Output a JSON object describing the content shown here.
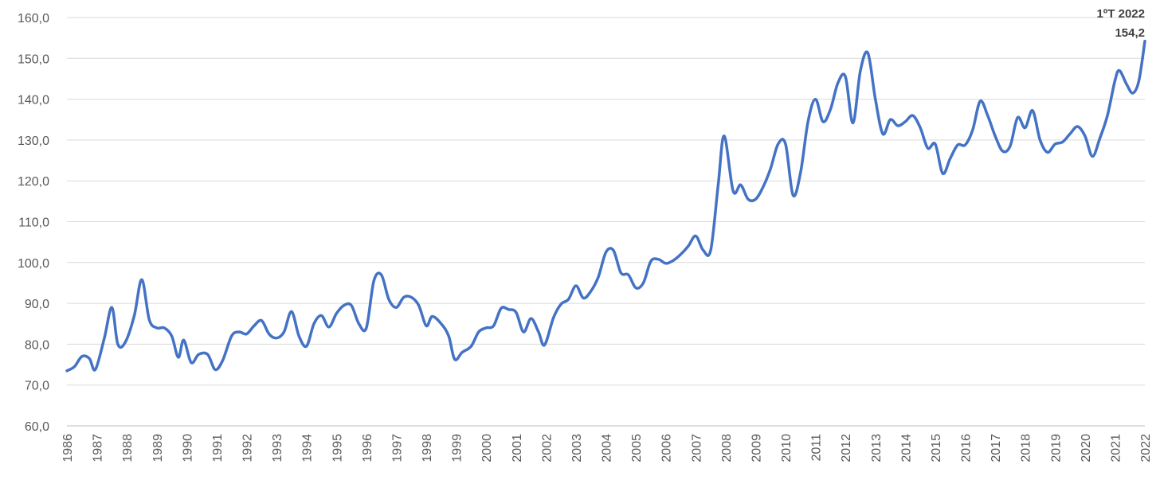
{
  "chart_data": {
    "type": "line",
    "title": "",
    "xlabel": "",
    "ylabel": "",
    "ylim": [
      60,
      160
    ],
    "xlim": [
      1986,
      2022
    ],
    "y_ticks": [
      "60,0",
      "70,0",
      "80,0",
      "90,0",
      "100,0",
      "110,0",
      "120,0",
      "130,0",
      "140,0",
      "150,0",
      "160,0"
    ],
    "x_ticks": [
      "1986",
      "1987",
      "1988",
      "1989",
      "1990",
      "1991",
      "1992",
      "1993",
      "1994",
      "1995",
      "1996",
      "1997",
      "1998",
      "1999",
      "2000",
      "2001",
      "2002",
      "2003",
      "2004",
      "2005",
      "2006",
      "2007",
      "2008",
      "2009",
      "2010",
      "2011",
      "2012",
      "2013",
      "2014",
      "2015",
      "2016",
      "2017",
      "2018",
      "2019",
      "2020",
      "2021",
      "2022"
    ],
    "grid": true,
    "legend": "none",
    "line_color": "#4472c4",
    "annotation": {
      "line1": "1ºT 2022",
      "line2": "154,2"
    },
    "series": [
      {
        "points": [
          [
            1986.0,
            73.5
          ],
          [
            1986.25,
            74.5
          ],
          [
            1986.5,
            77
          ],
          [
            1986.75,
            76.5
          ],
          [
            1986.95,
            73.8
          ],
          [
            1987.25,
            81.5
          ],
          [
            1987.5,
            89
          ],
          [
            1987.7,
            80
          ],
          [
            1987.95,
            80.5
          ],
          [
            1988.25,
            87
          ],
          [
            1988.5,
            95.8
          ],
          [
            1988.75,
            86
          ],
          [
            1989.0,
            84
          ],
          [
            1989.25,
            84
          ],
          [
            1989.5,
            82
          ],
          [
            1989.72,
            76.8
          ],
          [
            1989.9,
            81
          ],
          [
            1990.15,
            75.5
          ],
          [
            1990.4,
            77.5
          ],
          [
            1990.7,
            77.5
          ],
          [
            1990.95,
            73.8
          ],
          [
            1991.2,
            76
          ],
          [
            1991.5,
            82
          ],
          [
            1991.75,
            83
          ],
          [
            1992.0,
            82.5
          ],
          [
            1992.25,
            84.5
          ],
          [
            1992.5,
            85.8
          ],
          [
            1992.75,
            82.5
          ],
          [
            1993.0,
            81.5
          ],
          [
            1993.25,
            83
          ],
          [
            1993.5,
            88
          ],
          [
            1993.75,
            82
          ],
          [
            1994.0,
            79.5
          ],
          [
            1994.25,
            85
          ],
          [
            1994.5,
            87
          ],
          [
            1994.75,
            84.2
          ],
          [
            1995.0,
            87.5
          ],
          [
            1995.25,
            89.5
          ],
          [
            1995.5,
            89.5
          ],
          [
            1995.75,
            85
          ],
          [
            1996.0,
            84
          ],
          [
            1996.25,
            95.5
          ],
          [
            1996.5,
            97
          ],
          [
            1996.75,
            91
          ],
          [
            1997.0,
            89
          ],
          [
            1997.25,
            91.5
          ],
          [
            1997.5,
            91.5
          ],
          [
            1997.75,
            89.5
          ],
          [
            1998.0,
            84.5
          ],
          [
            1998.2,
            86.8
          ],
          [
            1998.5,
            85
          ],
          [
            1998.75,
            82
          ],
          [
            1998.95,
            76.3
          ],
          [
            1999.2,
            78
          ],
          [
            1999.5,
            79.5
          ],
          [
            1999.75,
            83
          ],
          [
            2000.0,
            84
          ],
          [
            2000.25,
            84.5
          ],
          [
            2000.5,
            88.8
          ],
          [
            2000.75,
            88.5
          ],
          [
            2001.0,
            87.8
          ],
          [
            2001.25,
            83
          ],
          [
            2001.5,
            86.3
          ],
          [
            2001.75,
            83
          ],
          [
            2001.95,
            79.8
          ],
          [
            2002.25,
            86.5
          ],
          [
            2002.5,
            89.8
          ],
          [
            2002.75,
            91
          ],
          [
            2003.0,
            94.3
          ],
          [
            2003.25,
            91.3
          ],
          [
            2003.5,
            93
          ],
          [
            2003.75,
            96.5
          ],
          [
            2004.0,
            102.5
          ],
          [
            2004.25,
            103
          ],
          [
            2004.5,
            97.5
          ],
          [
            2004.75,
            97
          ],
          [
            2005.0,
            93.8
          ],
          [
            2005.25,
            95
          ],
          [
            2005.5,
            100.3
          ],
          [
            2005.75,
            100.8
          ],
          [
            2006.0,
            99.8
          ],
          [
            2006.25,
            100.5
          ],
          [
            2006.5,
            102
          ],
          [
            2006.75,
            104
          ],
          [
            2007.0,
            106.5
          ],
          [
            2007.25,
            103
          ],
          [
            2007.5,
            103
          ],
          [
            2007.75,
            119
          ],
          [
            2007.95,
            131
          ],
          [
            2008.25,
            117.5
          ],
          [
            2008.5,
            119
          ],
          [
            2008.75,
            115.5
          ],
          [
            2009.0,
            115.5
          ],
          [
            2009.25,
            118.5
          ],
          [
            2009.5,
            123
          ],
          [
            2009.75,
            129
          ],
          [
            2010.0,
            129
          ],
          [
            2010.25,
            116.5
          ],
          [
            2010.5,
            122
          ],
          [
            2010.75,
            134.5
          ],
          [
            2011.0,
            140
          ],
          [
            2011.25,
            134.5
          ],
          [
            2011.5,
            137.5
          ],
          [
            2011.75,
            144
          ],
          [
            2012.0,
            145.5
          ],
          [
            2012.25,
            134.2
          ],
          [
            2012.5,
            147
          ],
          [
            2012.75,
            151.3
          ],
          [
            2013.0,
            140
          ],
          [
            2013.25,
            131.5
          ],
          [
            2013.5,
            135
          ],
          [
            2013.75,
            133.5
          ],
          [
            2014.0,
            134.5
          ],
          [
            2014.25,
            136
          ],
          [
            2014.5,
            133
          ],
          [
            2014.75,
            128
          ],
          [
            2015.0,
            129
          ],
          [
            2015.25,
            121.8
          ],
          [
            2015.5,
            125.5
          ],
          [
            2015.75,
            128.8
          ],
          [
            2016.0,
            128.8
          ],
          [
            2016.25,
            132.5
          ],
          [
            2016.5,
            139.5
          ],
          [
            2016.75,
            136
          ],
          [
            2017.0,
            131
          ],
          [
            2017.25,
            127.3
          ],
          [
            2017.5,
            128.5
          ],
          [
            2017.75,
            135.5
          ],
          [
            2018.0,
            133
          ],
          [
            2018.25,
            137.2
          ],
          [
            2018.5,
            130
          ],
          [
            2018.75,
            127
          ],
          [
            2019.0,
            129
          ],
          [
            2019.25,
            129.5
          ],
          [
            2019.5,
            131.5
          ],
          [
            2019.75,
            133.3
          ],
          [
            2020.0,
            131
          ],
          [
            2020.25,
            126
          ],
          [
            2020.5,
            130.5
          ],
          [
            2020.75,
            136
          ],
          [
            2021.0,
            144.5
          ],
          [
            2021.15,
            147
          ],
          [
            2021.4,
            143.5
          ],
          [
            2021.6,
            141.5
          ],
          [
            2021.8,
            144.5
          ],
          [
            2022.0,
            154.2
          ]
        ]
      }
    ]
  }
}
